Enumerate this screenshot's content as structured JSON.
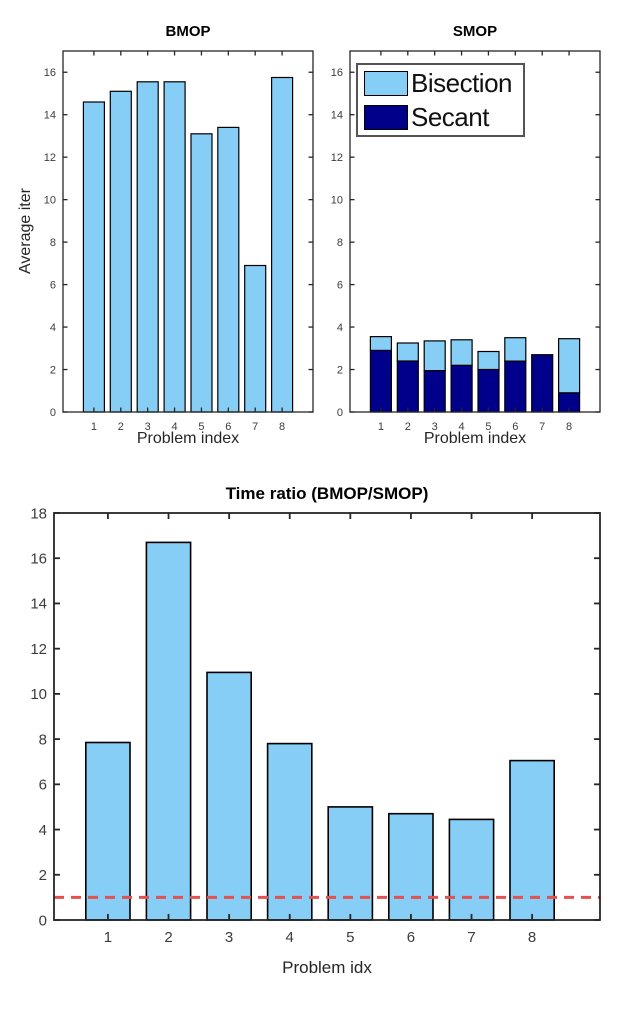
{
  "figure": {
    "background": "#ffffff"
  },
  "colors": {
    "bisection_fill": "#87cef7",
    "secant_fill": "#00008b",
    "bar_edge": "#000000",
    "axis_line": "#262626",
    "tick_label": "#3c3c3c",
    "title": "#000000",
    "reference_line": "#e4504e",
    "legend_border": "#555555",
    "legend_background": "#ffffff"
  },
  "chart_data": [
    {
      "id": "bmop",
      "type": "bar",
      "title": "BMOP",
      "xlabel": "Problem index",
      "ylabel": "Average iter",
      "categories": [
        "1",
        "2",
        "3",
        "4",
        "5",
        "6",
        "7",
        "8"
      ],
      "values": [
        14.6,
        15.1,
        15.55,
        15.55,
        13.1,
        13.4,
        6.9,
        15.75
      ],
      "ylim": [
        0,
        17
      ],
      "yticks": [
        0,
        2,
        4,
        6,
        8,
        10,
        12,
        14,
        16
      ],
      "grid": false,
      "bar_color_key": "bisection_fill"
    },
    {
      "id": "smop",
      "type": "stacked-bar",
      "title": "SMOP",
      "xlabel": "Problem index",
      "ylabel": "",
      "categories": [
        "1",
        "2",
        "3",
        "4",
        "5",
        "6",
        "7",
        "8"
      ],
      "series": [
        {
          "name": "Secant",
          "color_key": "secant_fill",
          "values": [
            2.9,
            2.4,
            1.95,
            2.2,
            2.0,
            2.4,
            2.7,
            0.9
          ]
        },
        {
          "name": "Bisection",
          "color_key": "bisection_fill",
          "values": [
            0.65,
            0.85,
            1.4,
            1.2,
            0.85,
            1.1,
            0.0,
            2.55
          ]
        }
      ],
      "stacked_totals": [
        3.55,
        3.25,
        3.35,
        3.4,
        2.85,
        3.5,
        2.7,
        3.45
      ],
      "ylim": [
        0,
        17
      ],
      "yticks": [
        0,
        2,
        4,
        6,
        8,
        10,
        12,
        14,
        16
      ],
      "grid": false,
      "legend": {
        "position": "top-left",
        "entries": [
          {
            "label": "Bisection",
            "color_key": "bisection_fill"
          },
          {
            "label": "Secant",
            "color_key": "secant_fill"
          }
        ]
      }
    },
    {
      "id": "time-ratio",
      "type": "bar",
      "title": "Time ratio (BMOP/SMOP)",
      "xlabel": "Problem idx",
      "ylabel": "",
      "categories": [
        "1",
        "2",
        "3",
        "4",
        "5",
        "6",
        "7",
        "8"
      ],
      "values": [
        7.85,
        16.7,
        10.95,
        7.8,
        5.0,
        4.7,
        4.45,
        7.05
      ],
      "ylim": [
        0,
        18
      ],
      "yticks": [
        0,
        2,
        4,
        6,
        8,
        10,
        12,
        14,
        16,
        18
      ],
      "grid": false,
      "bar_color_key": "bisection_fill",
      "refline": {
        "y": 1,
        "style": "dashed",
        "color_key": "reference_line"
      }
    }
  ]
}
